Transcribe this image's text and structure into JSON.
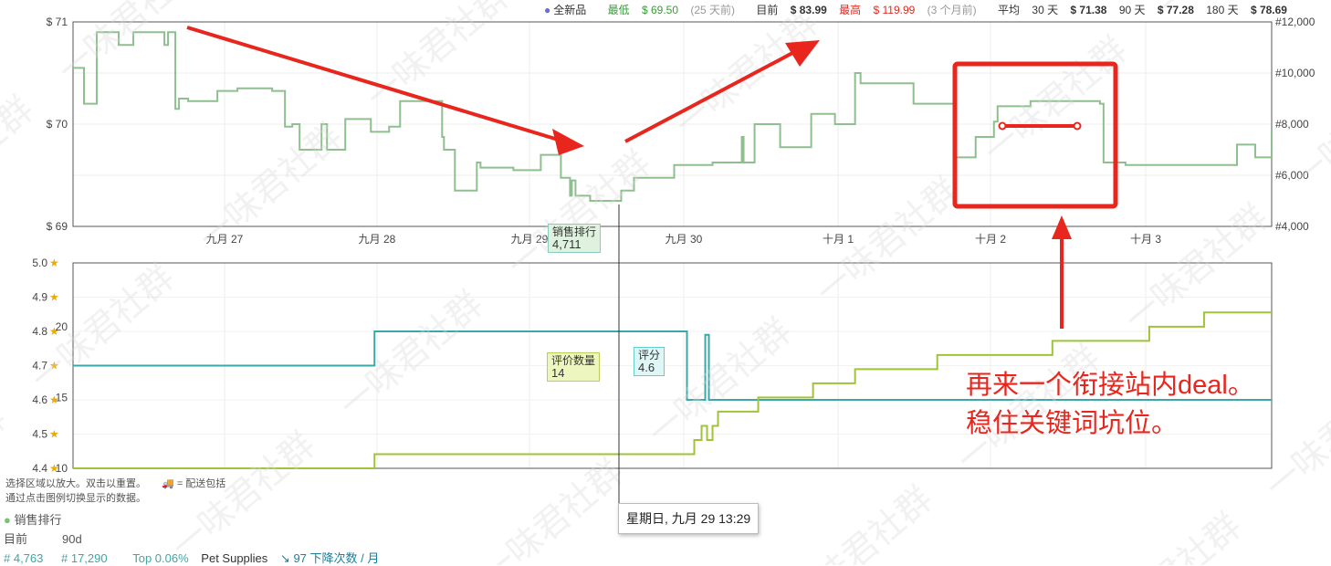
{
  "header": {
    "new_label": "全新品",
    "low_label": "最低",
    "low_value": "$ 69.50",
    "low_when": "(25 天前)",
    "current_label": "目前",
    "current_value": "$ 83.99",
    "high_label": "最高",
    "high_value": "$ 119.99",
    "high_when": "(3 个月前)",
    "avg_label": "平均",
    "avg30_label": "30 天",
    "avg30_value": "$ 71.38",
    "avg90_label": "90 天",
    "avg90_value": "$ 77.28",
    "avg180_label": "180 天",
    "avg180_value": "$ 78.69"
  },
  "hints": {
    "line1": "选择区域以放大。双击以重置。",
    "line1b": "= 配送包括",
    "line2": "通过点击图例切换显示的数据。"
  },
  "tooltips": {
    "rank_label": "销售排行",
    "rank_value": "4,711",
    "reviews_label": "评价数量",
    "reviews_value": "14",
    "rating_label": "评分",
    "rating_value": "4.6",
    "date": "星期日, 九月 29 13:29"
  },
  "annotation": {
    "line1": "再来一个衔接站内deal。",
    "line2": "稳住关键词坑位。"
  },
  "legend": {
    "title": "销售排行",
    "current_label": "目前",
    "range_label": "90d",
    "current_value": "# 4,763",
    "range_value": "# 17,290",
    "top": "Top 0.06%",
    "category": "Pet Supplies",
    "drops": "97 下降次数 / 月"
  },
  "colors": {
    "rank": "#8fbf8f",
    "rating": "#3aa8a8",
    "reviews": "#9fc43a",
    "annotation": "#e8261e",
    "low": "#3a9a3a",
    "high": "#e8261e"
  },
  "chart_data": [
    {
      "type": "line",
      "title": "",
      "x": [
        "九月 27",
        "九月 28",
        "九月 29",
        "九月 30",
        "十月 1",
        "十月 2",
        "十月 3"
      ],
      "yleft_ticks": [
        "$ 69",
        "$ 70",
        "$ 71"
      ],
      "yright_ticks": [
        "#4,000",
        "#6,000",
        "#8,000",
        "#10,000",
        "#12,000"
      ],
      "ylim": [
        4000,
        12000
      ],
      "series": [
        {
          "name": "销售排行",
          "points": [
            [
              0.0,
              10200
            ],
            [
              0.06,
              8800
            ],
            [
              0.13,
              11600
            ],
            [
              0.25,
              11100
            ],
            [
              0.33,
              11600
            ],
            [
              0.5,
              11100
            ],
            [
              0.52,
              11600
            ],
            [
              0.56,
              8600
            ],
            [
              0.58,
              9000
            ],
            [
              0.63,
              8900
            ],
            [
              0.79,
              9300
            ],
            [
              0.9,
              9400
            ],
            [
              1.09,
              9300
            ],
            [
              1.16,
              7900
            ],
            [
              1.2,
              8000
            ],
            [
              1.24,
              7000
            ],
            [
              1.3,
              7000
            ],
            [
              1.36,
              8000
            ],
            [
              1.39,
              7000
            ],
            [
              1.44,
              7000
            ],
            [
              1.49,
              8200
            ],
            [
              1.59,
              8200
            ],
            [
              1.63,
              7700
            ],
            [
              1.73,
              7900
            ],
            [
              1.79,
              8900
            ],
            [
              1.86,
              8900
            ],
            [
              1.99,
              8900
            ],
            [
              2.02,
              7500
            ],
            [
              2.03,
              7000
            ],
            [
              2.09,
              5400
            ],
            [
              2.2,
              5400
            ],
            [
              2.21,
              6500
            ],
            [
              2.23,
              6300
            ],
            [
              2.33,
              6300
            ],
            [
              2.41,
              6200
            ],
            [
              2.54,
              6200
            ],
            [
              2.56,
              6800
            ],
            [
              2.62,
              6800
            ],
            [
              2.67,
              5900
            ],
            [
              2.71,
              5900
            ],
            [
              2.72,
              5200
            ],
            [
              2.73,
              5800
            ],
            [
              2.75,
              5200
            ],
            [
              2.83,
              5000
            ],
            [
              2.92,
              5000
            ],
            [
              3.0,
              5400
            ],
            [
              3.07,
              5900
            ],
            [
              3.19,
              5900
            ],
            [
              3.29,
              6400
            ],
            [
              3.41,
              6400
            ],
            [
              3.5,
              6500
            ],
            [
              3.65,
              6500
            ],
            [
              3.66,
              7500
            ],
            [
              3.67,
              6500
            ],
            [
              3.73,
              8000
            ],
            [
              3.86,
              8000
            ],
            [
              3.87,
              7100
            ],
            [
              3.99,
              7100
            ],
            [
              4.04,
              8400
            ],
            [
              4.12,
              8400
            ],
            [
              4.17,
              8000
            ],
            [
              4.27,
              8000
            ],
            [
              4.28,
              10000
            ],
            [
              4.3,
              10000
            ],
            [
              4.31,
              9600
            ],
            [
              4.46,
              9600
            ],
            [
              4.6,
              8800
            ],
            [
              4.81,
              8800
            ],
            [
              4.82,
              6700
            ],
            [
              4.88,
              6700
            ],
            [
              4.94,
              7500
            ],
            [
              5.0,
              7500
            ],
            [
              5.04,
              8100
            ],
            [
              5.06,
              8700
            ],
            [
              5.16,
              8700
            ],
            [
              5.24,
              8900
            ],
            [
              5.36,
              8900
            ],
            [
              5.62,
              8800
            ],
            [
              5.64,
              6500
            ],
            [
              5.76,
              6400
            ],
            [
              6.14,
              6400
            ],
            [
              6.33,
              6400
            ],
            [
              6.37,
              7200
            ],
            [
              6.4,
              7200
            ],
            [
              6.47,
              6700
            ],
            [
              6.54,
              6700
            ],
            [
              6.56,
              7800
            ]
          ]
        }
      ]
    },
    {
      "type": "line",
      "title": "",
      "x": [
        "九月 27",
        "九月 28",
        "九月 29",
        "九月 30",
        "十月 1",
        "十月 2",
        "十月 3"
      ],
      "yleft_ticks": [
        "4.4",
        "4.5",
        "4.6",
        "4.7",
        "4.8",
        "4.9",
        "5.0"
      ],
      "yright_ticks": [
        "10",
        "15",
        "20"
      ],
      "series": [
        {
          "name": "评分",
          "points": [
            [
              0.0,
              4.7
            ],
            [
              1.64,
              4.7
            ],
            [
              1.65,
              4.8
            ],
            [
              3.35,
              4.8
            ],
            [
              3.36,
              4.6
            ],
            [
              3.45,
              4.6
            ],
            [
              3.46,
              4.79
            ],
            [
              3.48,
              4.6
            ],
            [
              6.56,
              4.6
            ]
          ]
        },
        {
          "name": "评价数量",
          "points": [
            [
              0.0,
              10
            ],
            [
              1.64,
              10
            ],
            [
              1.65,
              11
            ],
            [
              3.35,
              11
            ],
            [
              3.4,
              12
            ],
            [
              3.43,
              12
            ],
            [
              3.44,
              13
            ],
            [
              3.47,
              12
            ],
            [
              3.5,
              13
            ],
            [
              3.53,
              14
            ],
            [
              3.6,
              14
            ],
            [
              3.65,
              14
            ],
            [
              3.75,
              15
            ],
            [
              4.0,
              15
            ],
            [
              4.05,
              16
            ],
            [
              4.27,
              16
            ],
            [
              4.28,
              17
            ],
            [
              4.72,
              17
            ],
            [
              4.73,
              18
            ],
            [
              5.35,
              18
            ],
            [
              5.36,
              19
            ],
            [
              5.88,
              19
            ],
            [
              5.89,
              20
            ],
            [
              6.18,
              20
            ],
            [
              6.19,
              21
            ],
            [
              6.56,
              21
            ]
          ]
        }
      ]
    }
  ]
}
